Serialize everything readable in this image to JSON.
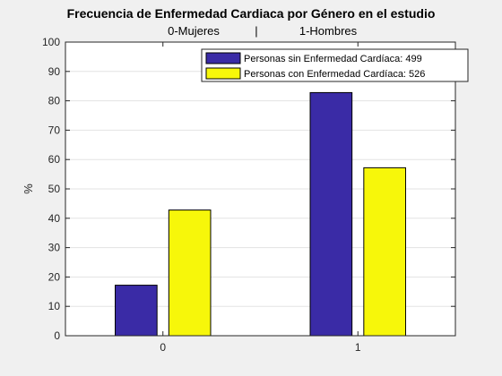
{
  "chart_data": {
    "type": "bar",
    "title": "Frecuencia de Enfermedad Cardiaca por Género en el estudio",
    "subtitle_left": "0-Mujeres",
    "subtitle_sep": "|",
    "subtitle_right": "1-Hombres",
    "xlabel": "",
    "ylabel": "%",
    "ylim": [
      0,
      100
    ],
    "yticks": [
      0,
      10,
      20,
      30,
      40,
      50,
      60,
      70,
      80,
      90,
      100
    ],
    "categories": [
      "0",
      "1"
    ],
    "grid": "horizontal",
    "legend_position": "top-right",
    "series": [
      {
        "name": "Personas sin Enfermedad Cardíaca: 499",
        "color": "#3a2ba6",
        "values": [
          17.2,
          82.8
        ]
      },
      {
        "name": "Personas con Enfermedad Cardíaca: 526",
        "color": "#f7f70a",
        "values": [
          42.8,
          57.2
        ]
      }
    ]
  }
}
